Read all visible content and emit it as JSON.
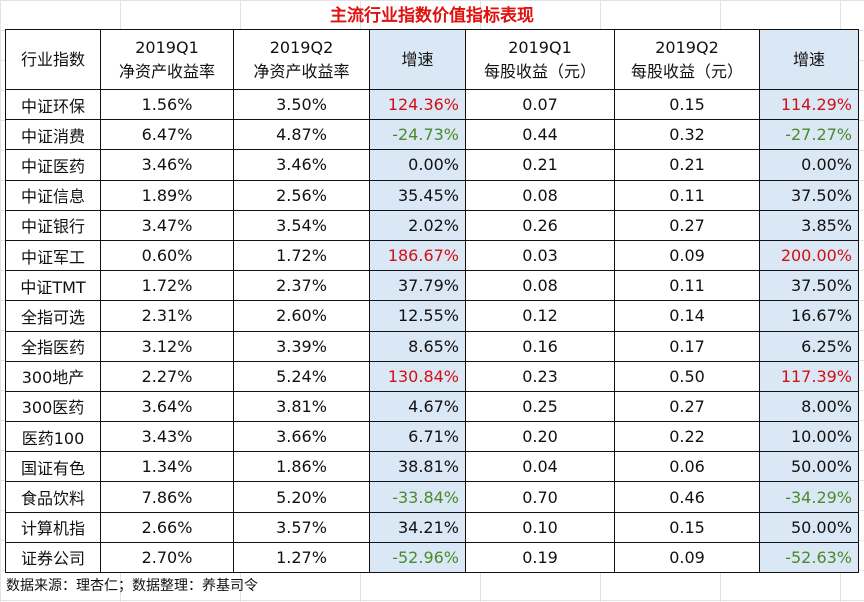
{
  "title": "主流行业指数价值指标表现",
  "headers": {
    "name": "行业指数",
    "roe_q1": [
      "2019Q1",
      "净资产收益率"
    ],
    "roe_q2": [
      "2019Q2",
      "净资产收益率"
    ],
    "roe_growth": "增速",
    "eps_q1": [
      "2019Q1",
      "每股收益（元）"
    ],
    "eps_q2": [
      "2019Q2",
      "每股收益（元）"
    ],
    "eps_growth": "增速"
  },
  "rows": [
    {
      "name": "中证环保",
      "roe_q1": "1.56%",
      "roe_q2": "3.50%",
      "roe_growth": "124.36%",
      "eps_q1": "0.07",
      "eps_q2": "0.15",
      "eps_growth": "114.29%"
    },
    {
      "name": "中证消费",
      "roe_q1": "6.47%",
      "roe_q2": "4.87%",
      "roe_growth": "-24.73%",
      "eps_q1": "0.44",
      "eps_q2": "0.32",
      "eps_growth": "-27.27%"
    },
    {
      "name": "中证医药",
      "roe_q1": "3.46%",
      "roe_q2": "3.46%",
      "roe_growth": "0.00%",
      "eps_q1": "0.21",
      "eps_q2": "0.21",
      "eps_growth": "0.00%"
    },
    {
      "name": "中证信息",
      "roe_q1": "1.89%",
      "roe_q2": "2.56%",
      "roe_growth": "35.45%",
      "eps_q1": "0.08",
      "eps_q2": "0.11",
      "eps_growth": "37.50%"
    },
    {
      "name": "中证银行",
      "roe_q1": "3.47%",
      "roe_q2": "3.54%",
      "roe_growth": "2.02%",
      "eps_q1": "0.26",
      "eps_q2": "0.27",
      "eps_growth": "3.85%"
    },
    {
      "name": "中证军工",
      "roe_q1": "0.60%",
      "roe_q2": "1.72%",
      "roe_growth": "186.67%",
      "eps_q1": "0.03",
      "eps_q2": "0.09",
      "eps_growth": "200.00%"
    },
    {
      "name": "中证TMT",
      "roe_q1": "1.72%",
      "roe_q2": "2.37%",
      "roe_growth": "37.79%",
      "eps_q1": "0.08",
      "eps_q2": "0.11",
      "eps_growth": "37.50%"
    },
    {
      "name": "全指可选",
      "roe_q1": "2.31%",
      "roe_q2": "2.60%",
      "roe_growth": "12.55%",
      "eps_q1": "0.12",
      "eps_q2": "0.14",
      "eps_growth": "16.67%"
    },
    {
      "name": "全指医药",
      "roe_q1": "3.12%",
      "roe_q2": "3.39%",
      "roe_growth": "8.65%",
      "eps_q1": "0.16",
      "eps_q2": "0.17",
      "eps_growth": "6.25%"
    },
    {
      "name": "300地产",
      "roe_q1": "2.27%",
      "roe_q2": "5.24%",
      "roe_growth": "130.84%",
      "eps_q1": "0.23",
      "eps_q2": "0.50",
      "eps_growth": "117.39%"
    },
    {
      "name": "300医药",
      "roe_q1": "3.64%",
      "roe_q2": "3.81%",
      "roe_growth": "4.67%",
      "eps_q1": "0.25",
      "eps_q2": "0.27",
      "eps_growth": "8.00%"
    },
    {
      "name": "医药100",
      "roe_q1": "3.43%",
      "roe_q2": "3.66%",
      "roe_growth": "6.71%",
      "eps_q1": "0.20",
      "eps_q2": "0.22",
      "eps_growth": "10.00%"
    },
    {
      "name": "国证有色",
      "roe_q1": "1.34%",
      "roe_q2": "1.86%",
      "roe_growth": "38.81%",
      "eps_q1": "0.04",
      "eps_q2": "0.06",
      "eps_growth": "50.00%"
    },
    {
      "name": "食品饮料",
      "roe_q1": "7.86%",
      "roe_q2": "5.20%",
      "roe_growth": "-33.84%",
      "eps_q1": "0.70",
      "eps_q2": "0.46",
      "eps_growth": "-34.29%"
    },
    {
      "name": "计算机指",
      "roe_q1": "2.66%",
      "roe_q2": "3.57%",
      "roe_growth": "34.21%",
      "eps_q1": "0.10",
      "eps_q2": "0.15",
      "eps_growth": "50.00%"
    },
    {
      "name": "证券公司",
      "roe_q1": "2.70%",
      "roe_q2": "1.27%",
      "roe_growth": "-52.96%",
      "eps_q1": "0.19",
      "eps_q2": "0.09",
      "eps_growth": "-52.63%"
    }
  ],
  "footnote": "数据来源：理杏仁；数据整理：养基司令",
  "colors": {
    "title": "#e0120f",
    "growth_bg": "#dae7f4",
    "high_growth": "#d20f14",
    "negative_growth": "#4a8a2c"
  }
}
